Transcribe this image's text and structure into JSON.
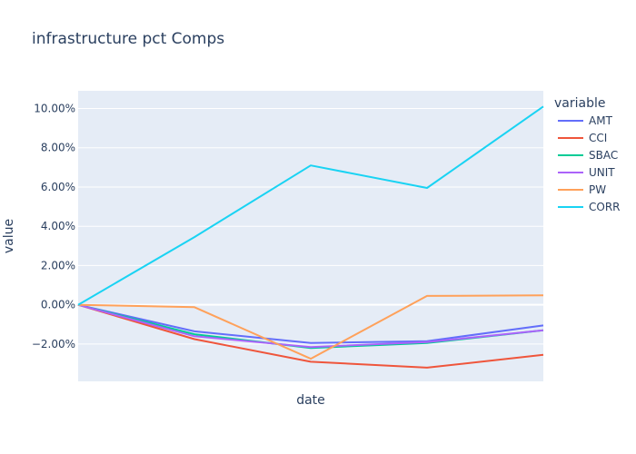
{
  "chart_data": {
    "type": "line",
    "title": "infrastructure pct Comps",
    "xlabel": "date",
    "ylabel": "value",
    "legend_title": "variable",
    "legend_position": "right",
    "grid": true,
    "x": [
      0,
      1,
      2,
      3,
      4
    ],
    "xlim": [
      0,
      4
    ],
    "ylim": [
      -3.9,
      10.9
    ],
    "yticks": [
      -2,
      0,
      2,
      4,
      6,
      8,
      10
    ],
    "ytick_labels": [
      "−2.00%",
      "0.00%",
      "2.00%",
      "4.00%",
      "6.00%",
      "8.00%",
      "10.00%"
    ],
    "series": [
      {
        "name": "AMT",
        "color": "#636efa",
        "values": [
          0,
          -1.35,
          -1.95,
          -1.85,
          -1.05
        ]
      },
      {
        "name": "CCI",
        "color": "#ef553b",
        "values": [
          0,
          -1.75,
          -2.9,
          -3.2,
          -2.55
        ]
      },
      {
        "name": "SBAC",
        "color": "#00cc96",
        "values": [
          0,
          -1.5,
          -2.2,
          -1.95,
          -1.3
        ]
      },
      {
        "name": "UNIT",
        "color": "#ab63fa",
        "values": [
          0,
          -1.6,
          -2.15,
          -1.9,
          -1.3
        ]
      },
      {
        "name": "PW",
        "color": "#ffa15a",
        "values": [
          0,
          -0.12,
          -2.75,
          0.45,
          0.48
        ]
      },
      {
        "name": "CORR",
        "color": "#19d3f3",
        "values": [
          0,
          3.45,
          7.1,
          5.95,
          10.1
        ]
      }
    ]
  }
}
